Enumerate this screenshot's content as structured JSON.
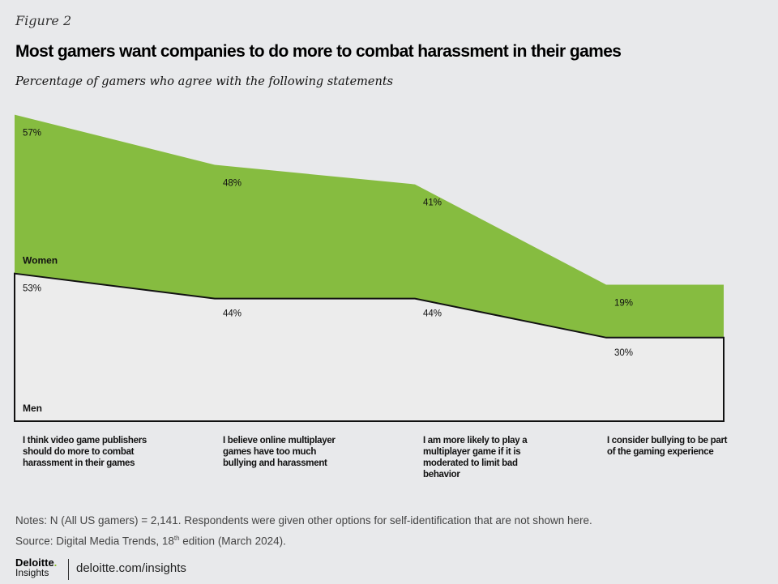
{
  "figure_label": "Figure 2",
  "chart_data": {
    "type": "area",
    "stacked": true,
    "title": "Most gamers want companies to do more to combat harassment in their games",
    "subtitle": "Percentage of gamers who agree with the following statements",
    "categories": [
      "I think video game publishers should do more to combat harassment in their games",
      "I believe online multiplayer games have too much bullying and harassment",
      "I am more likely to play a multiplayer game if it is moderated to limit bad behavior",
      "I consider bullying to be part of the gaming experience"
    ],
    "series": [
      {
        "name": "Men",
        "values": [
          53,
          44,
          44,
          30
        ],
        "labels": [
          "53%",
          "44%",
          "44%",
          "30%"
        ],
        "color": "#ececec"
      },
      {
        "name": "Women",
        "values": [
          57,
          48,
          41,
          19
        ],
        "labels": [
          "57%",
          "48%",
          "41%",
          "19%"
        ],
        "color": "#86bc40"
      }
    ]
  },
  "notes": "Notes: N (All US gamers) = 2,141. Respondents were given other options for self-identification that are not shown here.",
  "source_prefix": "Source: Digital Media Trends, 18",
  "source_sup": "th",
  "source_suffix": " edition (March 2024).",
  "logo": {
    "name": "Deloitte",
    "dot": ".",
    "sub": "Insights"
  },
  "url": "deloitte.com/insights"
}
